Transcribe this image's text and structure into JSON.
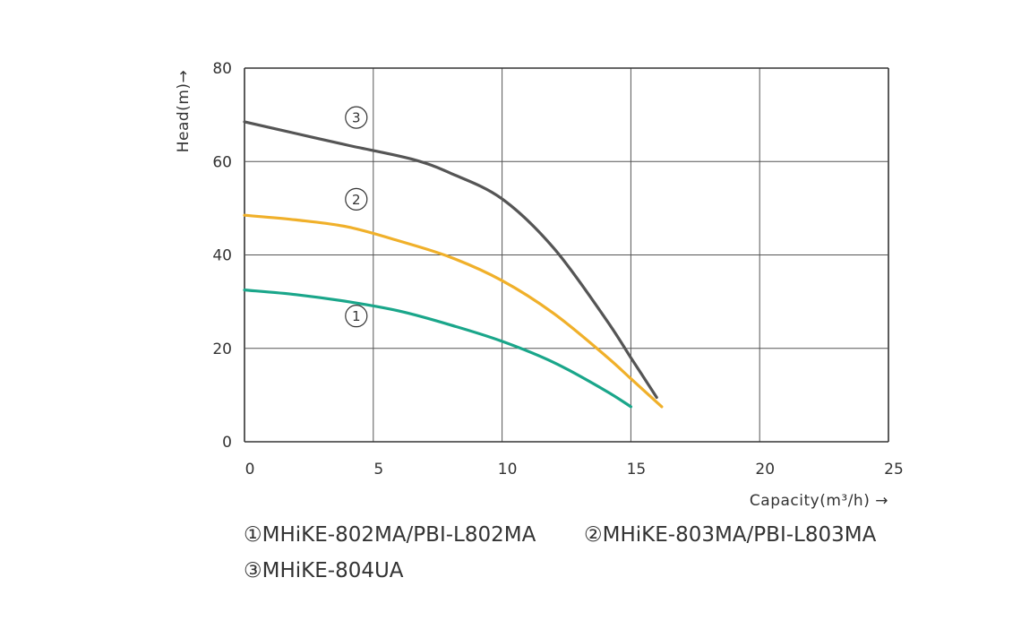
{
  "chart_data": {
    "type": "line",
    "xlabel": "Capacity(m³/h) →",
    "ylabel": "Head(m)→",
    "xlim": [
      0,
      25
    ],
    "ylim": [
      0,
      80
    ],
    "xticks": [
      "0",
      "5",
      "10",
      "15",
      "20",
      "25"
    ],
    "yticks": [
      "0",
      "20",
      "40",
      "60",
      "80"
    ],
    "grid": true,
    "series": [
      {
        "name": "①MHiKE-802MA/PBI-L802MA",
        "marker": "①",
        "color": "#1aa68a",
        "x": [
          0,
          2,
          4,
          6,
          8,
          10,
          12,
          14,
          15
        ],
        "y": [
          32.5,
          31.5,
          30,
          28,
          25,
          21.5,
          17,
          11,
          7.5
        ]
      },
      {
        "name": "②MHiKE-803MA/PBI-L803MA",
        "marker": "②",
        "color": "#f0b02a",
        "x": [
          0,
          2,
          4,
          6,
          8,
          10,
          12,
          14,
          15,
          16.2
        ],
        "y": [
          48.5,
          47.5,
          46,
          43,
          39.5,
          34.5,
          27.5,
          18.5,
          13.5,
          7.5
        ]
      },
      {
        "name": "③MHiKE-804UA",
        "marker": "③",
        "color": "#555555",
        "x": [
          0,
          2,
          4,
          6.5,
          8,
          10,
          12,
          14,
          15,
          16
        ],
        "y": [
          68.5,
          66,
          63.5,
          60.5,
          57.5,
          52,
          41.5,
          26.5,
          18,
          9.5
        ]
      }
    ]
  },
  "legend": {
    "item1": "①MHiKE-802MA/PBI-L802MA",
    "item2": "②MHiKE-803MA/PBI-L803MA",
    "item3": "③MHiKE-804UA"
  }
}
